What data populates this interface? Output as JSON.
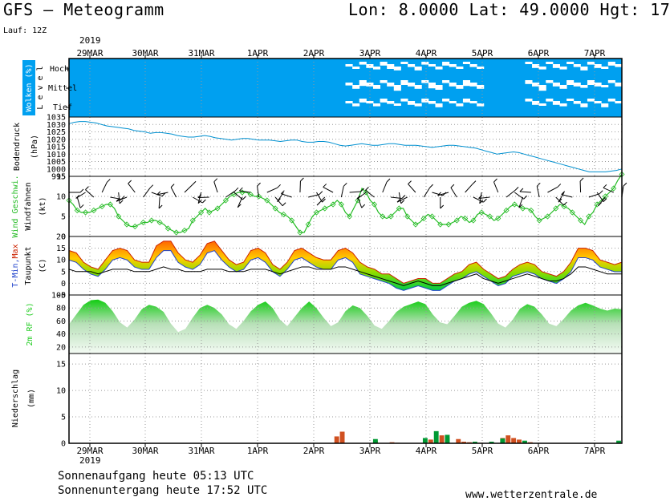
{
  "header": {
    "title": "GFS – Meteogramm",
    "coords": "Lon: 8.0000  Lat: 49.0000  Hgt: 17",
    "run": "Lauf: 12Z",
    "year": "2019"
  },
  "footer": {
    "sunrise": "Sonnenaufgang heute 05:13 UTC",
    "sunset": "Sonnenuntergang heute 17:52 UTC",
    "credit": "www.wetterzentrale.de"
  },
  "dates": [
    "29MAR",
    "30MAR",
    "31MAR",
    "1APR",
    "2APR",
    "3APR",
    "4APR",
    "5APR",
    "6APR",
    "7APR"
  ],
  "colors": {
    "cloud": "#00a0f0",
    "pressure": "#0090d0",
    "wind": "#22bb22",
    "rh": "#22cc22",
    "precip_conv": "#d05020",
    "precip_grid": "#009933"
  },
  "chart_data": [
    {
      "type": "heatmap",
      "panel": "clouds",
      "ylabel": "Wolken (%)",
      "levels": [
        "Tief",
        "Mittel",
        "Hoch"
      ],
      "level_axis_label": "L e v e l",
      "description_values": {
        "hoch": [
          100,
          100,
          100,
          100,
          100,
          100,
          100,
          100,
          100,
          100,
          100,
          100,
          100,
          100,
          100,
          100,
          100,
          100,
          100,
          100,
          100,
          100,
          100,
          100,
          100,
          100,
          100,
          100,
          100,
          100,
          100,
          100,
          100,
          100,
          100,
          100,
          100,
          100,
          100,
          100,
          90,
          90,
          70,
          60,
          70,
          60,
          50,
          60,
          80,
          70,
          60,
          70,
          80,
          70,
          60,
          70,
          90,
          80,
          70,
          80,
          100,
          100,
          100,
          100,
          100,
          100,
          80,
          60,
          70,
          80,
          60,
          70,
          80,
          70,
          60,
          70,
          60,
          80,
          60,
          70
        ],
        "mittel": [
          100,
          100,
          100,
          100,
          100,
          100,
          100,
          100,
          100,
          100,
          100,
          100,
          100,
          100,
          100,
          100,
          100,
          100,
          100,
          100,
          100,
          100,
          100,
          100,
          100,
          100,
          100,
          100,
          100,
          100,
          100,
          100,
          100,
          100,
          100,
          100,
          100,
          100,
          100,
          100,
          70,
          60,
          40,
          60,
          60,
          70,
          60,
          40,
          50,
          60,
          60,
          70,
          40,
          50,
          70,
          60,
          60,
          40,
          60,
          60,
          100,
          100,
          100,
          100,
          100,
          100,
          60,
          60,
          40,
          70,
          60,
          60,
          50,
          60,
          70,
          50,
          60,
          80,
          70,
          60
        ],
        "tief": [
          100,
          100,
          100,
          100,
          100,
          100,
          100,
          100,
          100,
          100,
          100,
          100,
          100,
          100,
          100,
          100,
          100,
          100,
          100,
          100,
          100,
          100,
          100,
          100,
          100,
          100,
          100,
          100,
          100,
          100,
          100,
          100,
          100,
          100,
          100,
          100,
          100,
          100,
          100,
          100,
          80,
          70,
          60,
          80,
          70,
          60,
          70,
          80,
          70,
          60,
          70,
          60,
          70,
          60,
          70,
          80,
          70,
          60,
          80,
          70,
          100,
          100,
          100,
          100,
          100,
          100,
          70,
          60,
          80,
          70,
          60,
          70,
          80,
          70,
          60,
          70,
          80,
          60,
          70,
          80
        ]
      }
    },
    {
      "type": "line",
      "panel": "pressure",
      "ylabel": "Bodendruck",
      "yunit": "(hPa)",
      "ylim": [
        995,
        1035
      ],
      "yticks": [
        995,
        1000,
        1005,
        1010,
        1015,
        1020,
        1025,
        1030,
        1035
      ],
      "values": [
        1030.5,
        1031.5,
        1032,
        1032,
        1031.5,
        1031,
        1030,
        1029,
        1028.5,
        1028,
        1027.5,
        1027,
        1026,
        1025.5,
        1025,
        1024,
        1024.5,
        1024.5,
        1024,
        1023.5,
        1022.5,
        1022,
        1021.5,
        1021.5,
        1022,
        1022.5,
        1022,
        1021,
        1020.5,
        1020,
        1019.5,
        1020,
        1020.5,
        1020.5,
        1020,
        1019.5,
        1019.5,
        1019.5,
        1019,
        1018.5,
        1019,
        1019.5,
        1019.5,
        1018.5,
        1018,
        1018,
        1018.5,
        1018.5,
        1018,
        1017,
        1016,
        1015.5,
        1016,
        1016.5,
        1017,
        1016.5,
        1016,
        1016,
        1016.5,
        1017,
        1017,
        1016.5,
        1016,
        1016,
        1016,
        1015.5,
        1015,
        1014.5,
        1015,
        1015.5,
        1016,
        1016,
        1015.5,
        1015,
        1014.5,
        1014,
        1013,
        1012,
        1011,
        1010,
        1010.5,
        1011,
        1011.5,
        1011,
        1010,
        1009,
        1008,
        1007,
        1006,
        1005,
        1004,
        1003,
        1002,
        1001,
        1000,
        999,
        998,
        998,
        998,
        998,
        998.5,
        999,
        1000
      ]
    },
    {
      "type": "line",
      "panel": "wind",
      "ylabel": "Wind Geschwi.",
      "ylabel2": "Windfahnen",
      "yunit": "(kt)",
      "ylim": [
        0,
        15
      ],
      "yticks": [
        0,
        5,
        10,
        15
      ],
      "values": [
        9,
        8,
        6.5,
        6,
        6,
        6,
        6.5,
        7,
        7.5,
        8,
        8,
        7,
        5,
        4,
        3,
        2.5,
        2.5,
        3,
        3.5,
        3.5,
        4,
        4,
        3.5,
        3,
        2,
        1.5,
        1,
        1,
        1.5,
        2,
        4,
        5,
        6,
        7,
        6,
        6.5,
        7,
        8,
        9,
        10,
        10.5,
        11,
        11,
        11,
        10.5,
        10,
        10,
        9.5,
        9,
        8,
        7,
        6,
        5.5,
        5,
        4,
        2.5,
        1,
        1,
        3,
        5,
        6,
        6.5,
        7,
        7.5,
        8,
        9,
        8,
        6,
        5,
        7,
        9,
        12,
        11,
        9,
        8,
        6,
        5,
        4.5,
        5,
        6,
        7,
        7,
        5,
        4,
        3,
        3.5,
        4.5,
        5.5,
        5,
        4,
        3,
        3,
        3,
        3.5,
        4,
        5,
        4.5,
        3.5,
        4,
        5.5,
        6,
        5.5,
        5,
        4,
        4.5,
        5.5,
        6.5,
        7.5,
        8,
        7.5,
        7,
        7,
        6.5,
        5,
        4,
        4.5,
        5,
        6,
        7,
        8,
        7.5,
        7,
        6,
        5,
        4,
        3,
        5,
        6,
        8,
        9,
        10,
        11,
        12,
        14,
        16
      ]
    },
    {
      "type": "area",
      "panel": "temperature",
      "ylabel_parts": [
        "T-Min,",
        "Max"
      ],
      "ylabel2": "Taupunkt",
      "yunit": "(C)",
      "ylim": [
        -5,
        20
      ],
      "yticks": [
        -5,
        0,
        5,
        10,
        15,
        20
      ],
      "tmax": [
        14,
        13,
        9,
        7,
        6,
        10,
        14,
        15,
        14,
        10,
        9,
        9,
        16,
        18,
        18,
        13,
        10,
        9,
        12,
        17,
        18,
        14,
        10,
        8,
        9,
        14,
        15,
        13,
        8,
        6,
        9,
        14,
        15,
        13,
        11,
        10,
        10,
        14,
        15,
        13,
        9,
        7,
        6,
        4,
        4,
        2,
        0,
        1,
        2,
        2,
        0,
        0,
        2,
        4,
        5,
        8,
        9,
        6,
        4,
        2,
        3,
        6,
        8,
        9,
        8,
        5,
        4,
        3,
        5,
        9,
        15,
        15,
        14,
        10,
        9,
        8,
        9
      ],
      "tmin": [
        12,
        11,
        8,
        6,
        5,
        8,
        12,
        13,
        12,
        9,
        8,
        8,
        13,
        16,
        16,
        11,
        9,
        8,
        10,
        15,
        16,
        12,
        9,
        7,
        8,
        12,
        13,
        11,
        7,
        5,
        8,
        12,
        13,
        11,
        9,
        8,
        8,
        12,
        13,
        11,
        6,
        5,
        4,
        3,
        2,
        0,
        -1,
        0,
        1,
        0,
        -1,
        -1,
        1,
        3,
        4,
        6,
        7,
        5,
        3,
        1,
        2,
        5,
        6,
        7,
        6,
        4,
        3,
        2,
        4,
        7,
        13,
        13,
        12,
        9,
        8,
        7,
        7
      ],
      "dewpoint": [
        6,
        5,
        5,
        5,
        4,
        5,
        6,
        6,
        6,
        5,
        5,
        5,
        6,
        7,
        6,
        6,
        5,
        5,
        5,
        6,
        6,
        6,
        5,
        5,
        5,
        6,
        6,
        6,
        5,
        4,
        5,
        6,
        7,
        7,
        6,
        6,
        6,
        7,
        7,
        6,
        5,
        4,
        3,
        2,
        1,
        0,
        -1,
        0,
        1,
        0,
        -1,
        -1,
        0,
        1,
        2,
        3,
        4,
        2,
        1,
        0,
        1,
        2,
        3,
        4,
        3,
        2,
        1,
        1,
        2,
        4,
        7,
        7,
        6,
        5,
        4,
        4,
        4
      ]
    },
    {
      "type": "area",
      "panel": "humidity",
      "ylabel": "2m RF (%)",
      "ylim": [
        10,
        100
      ],
      "yticks": [
        20,
        40,
        60,
        80,
        100
      ],
      "values": [
        55,
        70,
        85,
        92,
        93,
        88,
        75,
        58,
        50,
        62,
        78,
        85,
        82,
        74,
        56,
        43,
        48,
        65,
        80,
        85,
        80,
        70,
        55,
        48,
        60,
        75,
        85,
        90,
        80,
        62,
        52,
        66,
        80,
        90,
        80,
        65,
        52,
        58,
        75,
        84,
        80,
        68,
        53,
        48,
        60,
        74,
        82,
        86,
        90,
        86,
        70,
        58,
        55,
        68,
        82,
        88,
        91,
        86,
        72,
        56,
        50,
        62,
        79,
        86,
        82,
        70,
        56,
        52,
        63,
        76,
        84,
        88,
        84,
        79,
        76,
        79,
        78
      ]
    },
    {
      "type": "bar",
      "panel": "precipitation",
      "ylabel": "Niederschlag",
      "yunit": "(mm)",
      "ylim": [
        0,
        17
      ],
      "yticks": [
        0,
        5,
        10,
        15
      ],
      "series": [
        {
          "type": "convective",
          "values": [
            [
              48,
              1.3
            ],
            [
              49,
              2.2
            ],
            [
              55,
              0.5
            ],
            [
              58,
              0.2
            ],
            [
              59,
              0.1
            ],
            [
              65,
              0.7
            ],
            [
              67,
              1.5
            ],
            [
              68,
              1.1
            ],
            [
              70,
              0.8
            ],
            [
              71,
              0.3
            ],
            [
              72,
              0.2
            ],
            [
              74,
              0.1
            ],
            [
              76,
              0.2
            ],
            [
              78,
              1.0
            ],
            [
              79,
              1.5
            ],
            [
              80,
              1.0
            ],
            [
              81,
              0.7
            ],
            [
              82,
              0.4
            ],
            [
              83,
              0.2
            ]
          ]
        },
        {
          "type": "grid",
          "values": [
            [
              55,
              0.8
            ],
            [
              64,
              1.0
            ],
            [
              66,
              2.3
            ],
            [
              68,
              1.6
            ],
            [
              73,
              0.3
            ],
            [
              76,
              0.3
            ],
            [
              78,
              0.9
            ],
            [
              82,
              0.5
            ],
            [
              99,
              0.5
            ]
          ]
        }
      ]
    }
  ]
}
